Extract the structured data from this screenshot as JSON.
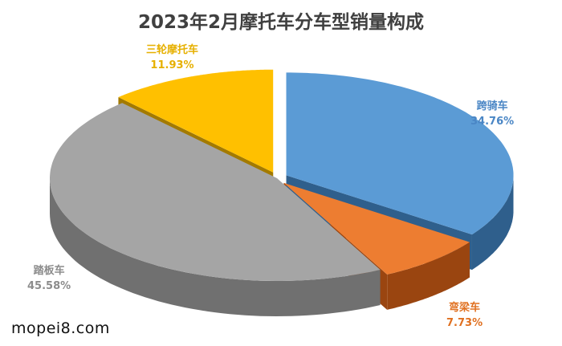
{
  "chart_data": {
    "type": "pie",
    "title": "2023年2月摩托车分车型销量构成",
    "style": "3d-exploded",
    "start": "top, clockwise",
    "slices": [
      {
        "label": "跨骑车",
        "value": 34.76,
        "text": "34.76%",
        "color": "#5b9bd5",
        "side": "#2f5f8c",
        "exploded": true
      },
      {
        "label": "弯梁车",
        "value": 7.73,
        "text": "7.73%",
        "color": "#ed7d31",
        "side": "#9a4510",
        "exploded": true
      },
      {
        "label": "踏板车",
        "value": 45.58,
        "text": "45.58%",
        "color": "#a5a5a5",
        "side": "#707070",
        "exploded": false
      },
      {
        "label": "三轮摩托车",
        "value": 11.93,
        "text": "11.93%",
        "color": "#ffc000",
        "side": "#a37a00",
        "exploded": true
      }
    ]
  },
  "watermark": "mopei8.com"
}
